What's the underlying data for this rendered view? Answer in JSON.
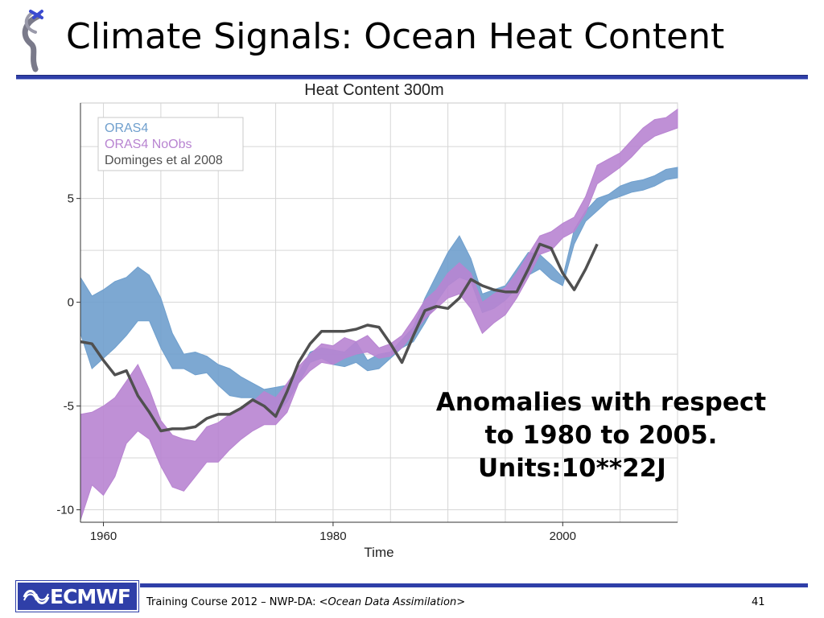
{
  "slide": {
    "title": "Climate Signals: Ocean Heat Content",
    "annotation": [
      "Anomalies with respect",
      "to 1980 to 2005.",
      "Units:10**22J"
    ],
    "footer": {
      "brand": "ECMWF",
      "course": "Training Course 2012 – NWP-DA: ",
      "topic_open": "<",
      "topic": "Ocean Data Assimilation",
      "topic_close": ">",
      "page": "41"
    }
  },
  "colors": {
    "rule": "#2f3fa8",
    "oras4": "#6f9fcd",
    "oras4_noobs": "#b884d1",
    "domingues": "#505050"
  },
  "chart_data": {
    "type": "area",
    "title": "Heat Content 300m",
    "xlabel": "Time",
    "ylabel": "",
    "xlim": [
      1958,
      2010
    ],
    "ylim": [
      -10.6,
      9.6
    ],
    "xticks": [
      1960,
      1980,
      2000
    ],
    "yticks": [
      5,
      0,
      -5,
      -10
    ],
    "grid": true,
    "legend": "top-left",
    "series": [
      {
        "name": "ORAS4",
        "kind": "band",
        "color": "#6f9fcd",
        "x": [
          1958,
          1959,
          1960,
          1961,
          1962,
          1963,
          1964,
          1965,
          1966,
          1967,
          1968,
          1969,
          1970,
          1971,
          1972,
          1973,
          1974,
          1975,
          1976,
          1977,
          1978,
          1979,
          1980,
          1981,
          1982,
          1983,
          1984,
          1985,
          1986,
          1987,
          1988,
          1989,
          1990,
          1991,
          1992,
          1993,
          1994,
          1995,
          1996,
          1997,
          1998,
          1999,
          2000,
          2001,
          2002,
          2003,
          2004,
          2005,
          2006,
          2007,
          2008,
          2009,
          2010
        ],
        "upper": [
          1.2,
          0.3,
          0.6,
          1.0,
          1.2,
          1.7,
          1.3,
          0.2,
          -1.5,
          -2.5,
          -2.4,
          -2.6,
          -3.0,
          -3.2,
          -3.6,
          -3.9,
          -4.2,
          -4.1,
          -4.0,
          -3.4,
          -2.4,
          -2.2,
          -2.3,
          -2.4,
          -1.9,
          -2.8,
          -2.5,
          -2.4,
          -1.8,
          -1.2,
          0.2,
          1.3,
          2.4,
          3.2,
          2.1,
          0.4,
          0.6,
          0.8,
          1.6,
          2.4,
          2.3,
          1.8,
          1.2,
          3.5,
          4.4,
          5.0,
          5.2,
          5.6,
          5.8,
          5.9,
          6.1,
          6.4,
          6.5
        ],
        "lower": [
          -1.5,
          -3.2,
          -2.7,
          -2.2,
          -1.6,
          -0.9,
          -0.9,
          -2.2,
          -3.2,
          -3.2,
          -3.5,
          -3.4,
          -4.0,
          -4.5,
          -4.6,
          -4.6,
          -5.0,
          -5.4,
          -4.8,
          -3.9,
          -2.9,
          -2.7,
          -3.0,
          -3.1,
          -2.9,
          -3.3,
          -3.2,
          -2.7,
          -2.2,
          -1.9,
          -1.0,
          0.0,
          0.8,
          1.2,
          1.0,
          -0.5,
          -0.3,
          0.1,
          0.7,
          1.3,
          1.6,
          1.1,
          0.8,
          2.8,
          3.9,
          4.4,
          4.9,
          5.1,
          5.3,
          5.4,
          5.6,
          5.9,
          6.0
        ]
      },
      {
        "name": "ORAS4 NoObs",
        "kind": "band",
        "color": "#b884d1",
        "x": [
          1958,
          1959,
          1960,
          1961,
          1962,
          1963,
          1964,
          1965,
          1966,
          1967,
          1968,
          1969,
          1970,
          1971,
          1972,
          1973,
          1974,
          1975,
          1976,
          1977,
          1978,
          1979,
          1980,
          1981,
          1982,
          1983,
          1984,
          1985,
          1986,
          1987,
          1988,
          1989,
          1990,
          1991,
          1992,
          1993,
          1994,
          1995,
          1996,
          1997,
          1998,
          1999,
          2000,
          2001,
          2002,
          2003,
          2004,
          2005,
          2006,
          2007,
          2008,
          2009,
          2010
        ],
        "upper": [
          -5.4,
          -5.3,
          -5.0,
          -4.6,
          -3.8,
          -3.0,
          -4.2,
          -5.7,
          -6.4,
          -6.6,
          -6.7,
          -6.0,
          -5.8,
          -5.4,
          -5.2,
          -4.8,
          -4.3,
          -4.6,
          -3.9,
          -3.1,
          -2.5,
          -2.0,
          -2.1,
          -1.7,
          -1.9,
          -1.6,
          -2.2,
          -2.0,
          -1.6,
          -0.8,
          0.1,
          0.6,
          1.4,
          1.9,
          1.4,
          0.0,
          0.4,
          0.7,
          1.4,
          2.3,
          3.2,
          3.4,
          3.8,
          4.1,
          5.1,
          6.6,
          6.9,
          7.2,
          7.8,
          8.4,
          8.8,
          8.9,
          9.3
        ],
        "lower": [
          -10.5,
          -8.8,
          -9.3,
          -8.4,
          -6.8,
          -6.2,
          -6.6,
          -7.9,
          -8.9,
          -9.1,
          -8.4,
          -7.7,
          -7.7,
          -7.1,
          -6.6,
          -6.2,
          -5.9,
          -5.9,
          -5.3,
          -3.9,
          -3.3,
          -2.9,
          -3.0,
          -2.7,
          -2.5,
          -2.4,
          -2.7,
          -2.6,
          -2.2,
          -1.5,
          -0.8,
          -0.3,
          0.2,
          0.4,
          -0.3,
          -1.5,
          -1.0,
          -0.6,
          0.2,
          1.2,
          2.3,
          2.5,
          3.1,
          3.4,
          4.3,
          5.7,
          6.1,
          6.5,
          7.0,
          7.6,
          8.0,
          8.2,
          8.4
        ]
      },
      {
        "name": "Dominges et al 2008",
        "kind": "line",
        "color": "#505050",
        "x": [
          1958,
          1959,
          1960,
          1961,
          1962,
          1963,
          1964,
          1965,
          1966,
          1967,
          1968,
          1969,
          1970,
          1971,
          1972,
          1973,
          1974,
          1975,
          1976,
          1977,
          1978,
          1979,
          1980,
          1981,
          1982,
          1983,
          1984,
          1985,
          1986,
          1987,
          1988,
          1989,
          1990,
          1991,
          1992,
          1993,
          1994,
          1995,
          1996,
          1997,
          1998,
          1999,
          2000,
          2001,
          2002,
          2003
        ],
        "y": [
          -1.9,
          -2.0,
          -2.8,
          -3.5,
          -3.3,
          -4.5,
          -5.3,
          -6.2,
          -6.1,
          -6.1,
          -6.0,
          -5.6,
          -5.4,
          -5.4,
          -5.1,
          -4.7,
          -5.0,
          -5.5,
          -4.3,
          -2.9,
          -2.0,
          -1.4,
          -1.4,
          -1.4,
          -1.3,
          -1.1,
          -1.2,
          -2.0,
          -2.9,
          -1.6,
          -0.4,
          -0.2,
          -0.3,
          0.2,
          1.1,
          0.8,
          0.6,
          0.5,
          0.5,
          1.6,
          2.8,
          2.6,
          1.4,
          0.6,
          1.6,
          2.8
        ]
      }
    ]
  }
}
